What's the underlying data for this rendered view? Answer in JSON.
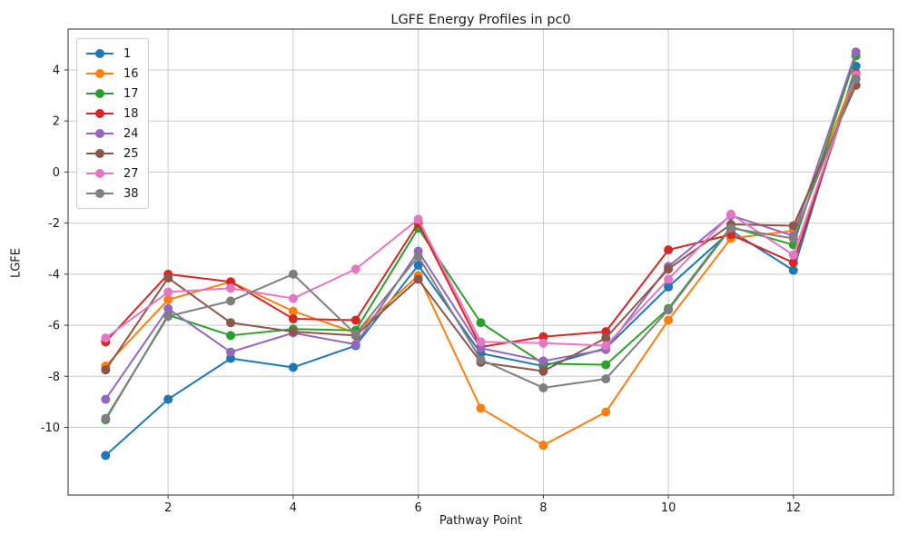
{
  "chart_data": {
    "type": "line",
    "title": "LGFE Energy Profiles in pc0",
    "xlabel": "Pathway Point",
    "ylabel": "LGFE",
    "x": [
      1,
      2,
      3,
      4,
      5,
      6,
      7,
      8,
      9,
      10,
      11,
      12,
      13
    ],
    "xticks": [
      2,
      4,
      6,
      8,
      10,
      12
    ],
    "yticks": [
      4,
      2,
      0,
      -2,
      -4,
      -6,
      -8,
      -10
    ],
    "xlim": [
      0.4,
      13.6
    ],
    "ylim": [
      -12.65,
      5.6
    ],
    "grid": true,
    "legend_position": "upper left",
    "marker": "circle",
    "series": [
      {
        "name": "1",
        "color": "#1f77b4",
        "values": [
          -11.1,
          -8.9,
          -7.3,
          -7.65,
          -6.8,
          -3.65,
          -7.1,
          -7.6,
          -6.9,
          -4.5,
          -2.3,
          -3.85,
          4.15
        ]
      },
      {
        "name": "16",
        "color": "#ff7f0e",
        "values": [
          -7.6,
          -5.0,
          -4.3,
          -5.45,
          -6.3,
          -4.05,
          -9.25,
          -10.7,
          -9.4,
          -5.8,
          -2.6,
          -2.3,
          3.85
        ]
      },
      {
        "name": "17",
        "color": "#2ca02c",
        "values": [
          -9.7,
          -5.6,
          -6.4,
          -6.15,
          -6.2,
          -2.2,
          -5.9,
          -7.5,
          -7.55,
          -5.35,
          -2.15,
          -2.85,
          4.55
        ]
      },
      {
        "name": "18",
        "color": "#d62728",
        "values": [
          -6.65,
          -4.0,
          -4.3,
          -5.75,
          -5.8,
          -2.0,
          -6.85,
          -6.45,
          -6.25,
          -3.05,
          -2.45,
          -3.55,
          3.85
        ]
      },
      {
        "name": "24",
        "color": "#9467bd",
        "values": [
          -8.9,
          -5.35,
          -7.05,
          -6.3,
          -6.75,
          -3.1,
          -6.9,
          -7.4,
          -6.95,
          -3.7,
          -1.7,
          -2.5,
          4.7
        ]
      },
      {
        "name": "25",
        "color": "#8c564b",
        "values": [
          -7.75,
          -4.15,
          -5.9,
          -6.25,
          -6.4,
          -4.2,
          -7.45,
          -7.8,
          -6.5,
          -3.8,
          -2.05,
          -2.1,
          3.4
        ]
      },
      {
        "name": "27",
        "color": "#e377c2",
        "values": [
          -6.5,
          -4.7,
          -4.55,
          -4.95,
          -3.8,
          -1.85,
          -6.65,
          -6.7,
          -6.8,
          -4.2,
          -1.65,
          -3.25,
          3.8
        ]
      },
      {
        "name": "38",
        "color": "#7f7f7f",
        "values": [
          -9.65,
          -5.65,
          -5.05,
          -4.0,
          -6.35,
          -3.3,
          -7.35,
          -8.45,
          -8.1,
          -5.4,
          -2.2,
          -2.6,
          3.65
        ]
      }
    ],
    "style": {
      "grid_color": "#c9c9c9",
      "spine_color": "#2b2b2b",
      "tick_color": "#333333",
      "text_color": "#1a1a1a"
    }
  }
}
